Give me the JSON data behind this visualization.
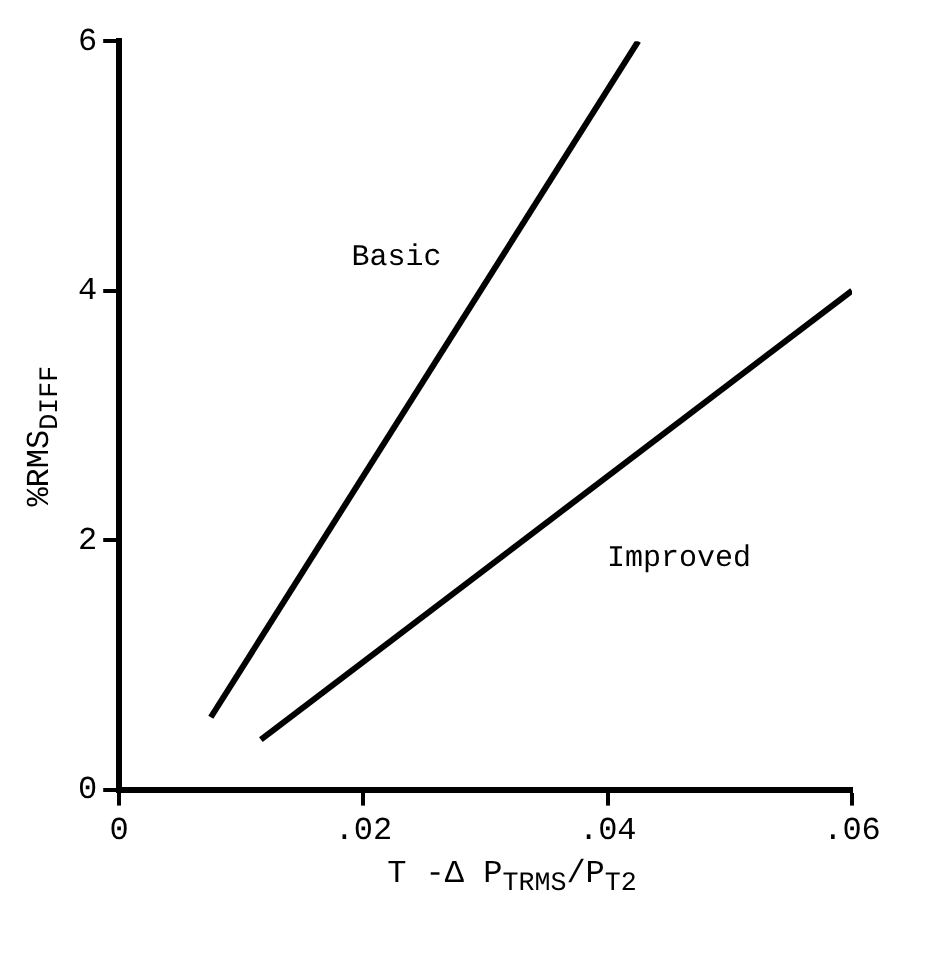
{
  "chart_data": {
    "type": "line",
    "xlabel": "T -Δ P$_{TRMS}$/P$_{T2}$",
    "ylabel": "%RMS$_{DIFF}$",
    "series": [
      {
        "name": "Basic",
        "color": "#000000",
        "x": [
          0.0075,
          0.0425
        ],
        "values": [
          0.58,
          6.0
        ]
      },
      {
        "name": "Improved",
        "color": "#000000",
        "x": [
          0.0116,
          0.06
        ],
        "values": [
          0.4,
          4.0
        ]
      }
    ],
    "xlim": [
      0,
      0.06
    ],
    "xticks": [
      {
        "value": 0,
        "label": "0"
      },
      {
        "value": 0.02,
        "label": ".02"
      },
      {
        "value": 0.04,
        "label": ".04"
      },
      {
        "value": 0.06,
        "label": ".06"
      }
    ],
    "ylim": [
      0,
      6
    ],
    "yticks": [
      0,
      2,
      4,
      6
    ],
    "grid": false,
    "legend": false,
    "marker": "none",
    "line_style": "solid"
  }
}
